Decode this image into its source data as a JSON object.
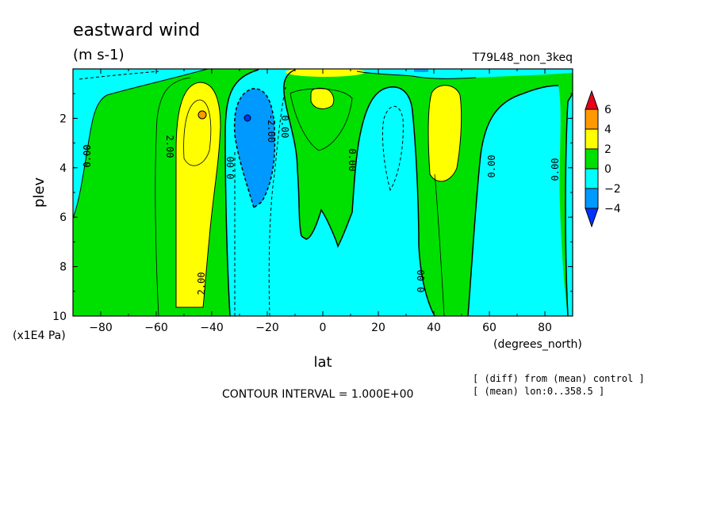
{
  "chart_data": {
    "type": "heatmap",
    "title": "eastward wind",
    "units": "(m s-1)",
    "experiment": "T79L48_non_3keq",
    "xlabel": "lat",
    "xunits": "(degrees_north)",
    "ylabel": "plev",
    "yunits": "(x1E4 Pa)",
    "xlim": [
      -90,
      90
    ],
    "ylim": [
      10,
      0
    ],
    "x_ticks": [
      "-80",
      "-60",
      "-40",
      "-20",
      "0",
      "20",
      "40",
      "60",
      "80"
    ],
    "y_ticks": [
      "2",
      "4",
      "6",
      "8",
      "10"
    ],
    "contour_interval": "CONTOUR INTERVAL = 1.000E+00",
    "notes": [
      "[ (diff) from (mean) control ]",
      "[ (mean) lon:0..358.5 ]"
    ],
    "colorbar": {
      "labels": [
        "6",
        "4",
        "2",
        "0",
        "−2",
        "−4"
      ],
      "colors": [
        "#e8001c",
        "#ff9900",
        "#ffff00",
        "#00e000",
        "#00ffff",
        "#0099ff",
        "#0033ff"
      ]
    },
    "contour_labels": [
      "0.00",
      "2.00",
      "0.00",
      "0.00",
      "-2.00",
      "0.00",
      "0.00",
      "0.00",
      "0.00",
      "0.00",
      "2.00",
      "-2.00"
    ],
    "colors": {
      "cyan": "#00ffff",
      "green": "#00e000",
      "yellow": "#ffff00",
      "blue": "#0099ff",
      "orange": "#ff9900",
      "red": "#e8001c"
    }
  }
}
